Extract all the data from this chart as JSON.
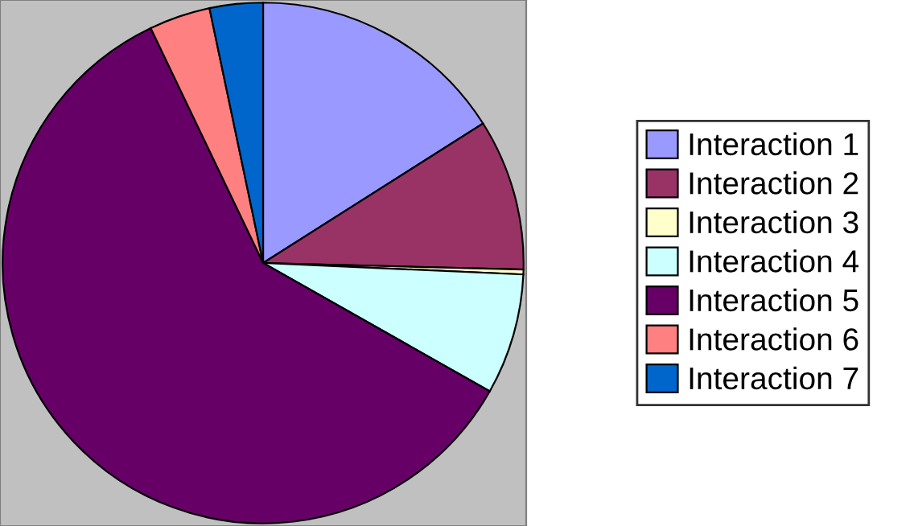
{
  "chart_data": {
    "type": "pie",
    "categories": [
      "Interaction 1",
      "Interaction 2",
      "Interaction 3",
      "Interaction 4",
      "Interaction 5",
      "Interaction 6",
      "Interaction 7"
    ],
    "values": [
      16,
      9.4,
      0.3,
      7.5,
      59.7,
      3.8,
      3.3
    ],
    "colors": [
      "#9999ff",
      "#993366",
      "#ffffcc",
      "#ccffff",
      "#660066",
      "#ff8080",
      "#0066cc"
    ],
    "legend": "right"
  }
}
